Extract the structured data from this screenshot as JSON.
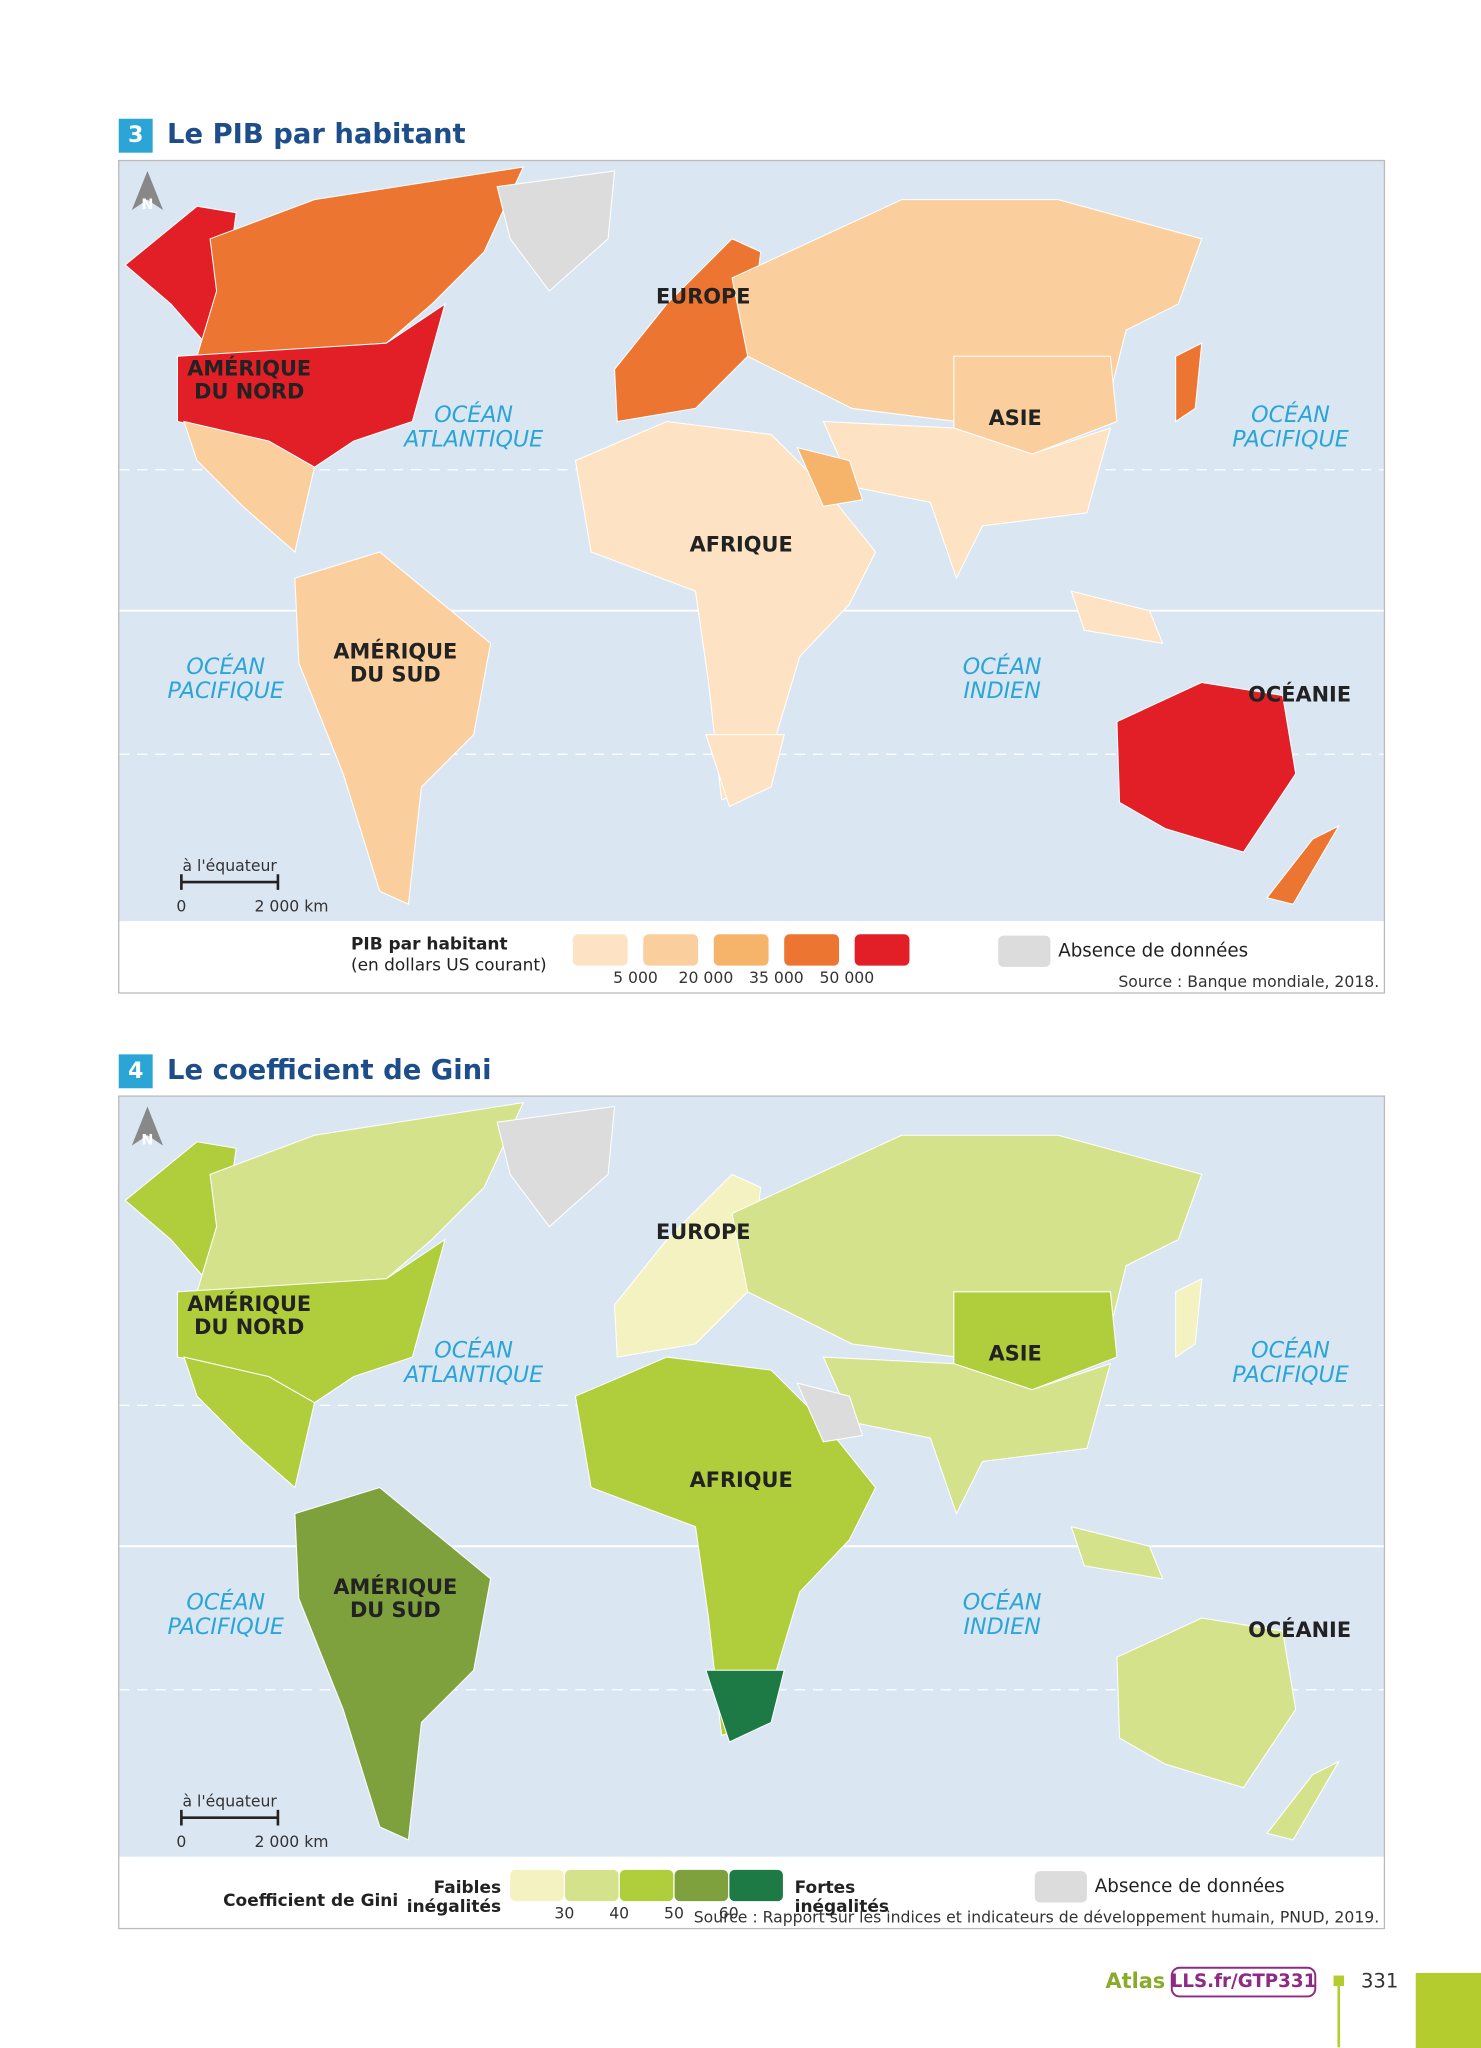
{
  "maps": [
    {
      "number": "3",
      "title": "Le PIB par habitant",
      "north": "N",
      "labels": [
        "EUROPE",
        "AMÉRIQUE\nDU NORD",
        "OCÉAN\nATLANTIQUE",
        "ASIE",
        "OCÉAN\nPACIFIQUE",
        "AFRIQUE",
        "AMÉRIQUE\nDU SUD",
        "OCÉAN\nPACIFIQUE",
        "OCÉAN\nINDIEN",
        "OCÉANIE"
      ],
      "scale": {
        "note": "à l'équateur",
        "start": "0",
        "end": "2 000 km"
      },
      "legend": {
        "title": "PIB par habitant",
        "subtitle": "(en dollars US courant)",
        "colors": [
          "#fde3c3",
          "#fbcf9d",
          "#f6b36a",
          "#ec7531",
          "#e21f26"
        ],
        "thresholds": [
          "5 000",
          "20 000",
          "35 000",
          "50 000"
        ],
        "no_data": "Absence de données",
        "no_data_color": "#dcdcdc"
      },
      "source": "Source : Banque mondiale, 2018."
    },
    {
      "number": "4",
      "title": "Le coefficient de Gini",
      "north": "N",
      "labels": [
        "EUROPE",
        "AMÉRIQUE\nDU NORD",
        "OCÉAN\nATLANTIQUE",
        "ASIE",
        "OCÉAN\nPACIFIQUE",
        "AFRIQUE",
        "AMÉRIQUE\nDU SUD",
        "OCÉAN\nPACIFIQUE",
        "OCÉAN\nINDIEN",
        "OCÉANIE"
      ],
      "scale": {
        "note": "à l'équateur",
        "start": "0",
        "end": "2 000 km"
      },
      "legend": {
        "title": "Coefficient de Gini",
        "low": "Faibles\ninégalités",
        "high": "Fortes\ninégalités",
        "colors": [
          "#f3f2c0",
          "#d4e38b",
          "#b0cd3c",
          "#7ea13e",
          "#1d7a44"
        ],
        "thresholds": [
          "30",
          "40",
          "50",
          "60"
        ],
        "no_data": "Absence de données",
        "no_data_color": "#dcdcdc"
      },
      "source": "Source : Rapport sur les indices et indicateurs de développement humain, PNUD, 2019."
    }
  ],
  "footer": {
    "atlas": "Atlas",
    "link": "LLS.fr/GTP331",
    "page": "331"
  }
}
